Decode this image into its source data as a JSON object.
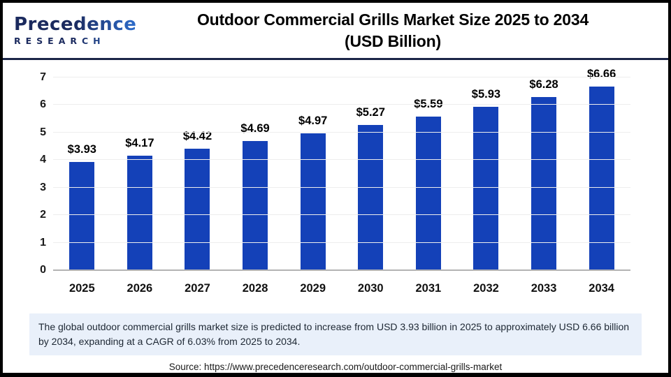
{
  "header": {
    "logo": {
      "name": "Precedence Research",
      "line1": "Precedence",
      "line2": "RESEARCH",
      "color_dark": "#1b2a5e",
      "color_light": "#2e6fd0"
    },
    "title_line1": "Outdoor Commercial Grills Market Size 2025 to 2034",
    "title_line2": "(USD Billion)",
    "divider_color": "#1b2547"
  },
  "chart_data": {
    "type": "bar",
    "title": "Outdoor Commercial Grills Market Size 2025 to 2034 (USD Billion)",
    "xlabel": "",
    "ylabel": "",
    "unit": "USD Billion",
    "categories": [
      "2025",
      "2026",
      "2027",
      "2028",
      "2029",
      "2030",
      "2031",
      "2032",
      "2033",
      "2034"
    ],
    "values": [
      3.93,
      4.17,
      4.42,
      4.69,
      4.97,
      5.27,
      5.59,
      5.93,
      6.28,
      6.66
    ],
    "data_labels": [
      "$3.93",
      "$4.17",
      "$4.42",
      "$4.69",
      "$4.97",
      "$5.27",
      "$5.59",
      "$5.93",
      "$6.28",
      "$6.66"
    ],
    "ylim": [
      0,
      7
    ],
    "yticks": [
      0,
      1,
      2,
      3,
      4,
      5,
      6,
      7
    ],
    "grid": true,
    "legend": "none",
    "bar_color": "#1441b8",
    "gridline_color": "#ededed",
    "baseline_color": "#b3b3b3"
  },
  "footnote": {
    "text": "The global outdoor commercial grills market size is predicted to increase from USD 3.93 billion in 2025 to approximately USD 6.66 billion by 2034, expanding at a CAGR of 6.03% from 2025 to 2034.",
    "bg_color": "#e9f0fa",
    "text_color": "#1d2733"
  },
  "source": {
    "text": "Source: https://www.precedenceresearch.com/outdoor-commercial-grills-market"
  }
}
